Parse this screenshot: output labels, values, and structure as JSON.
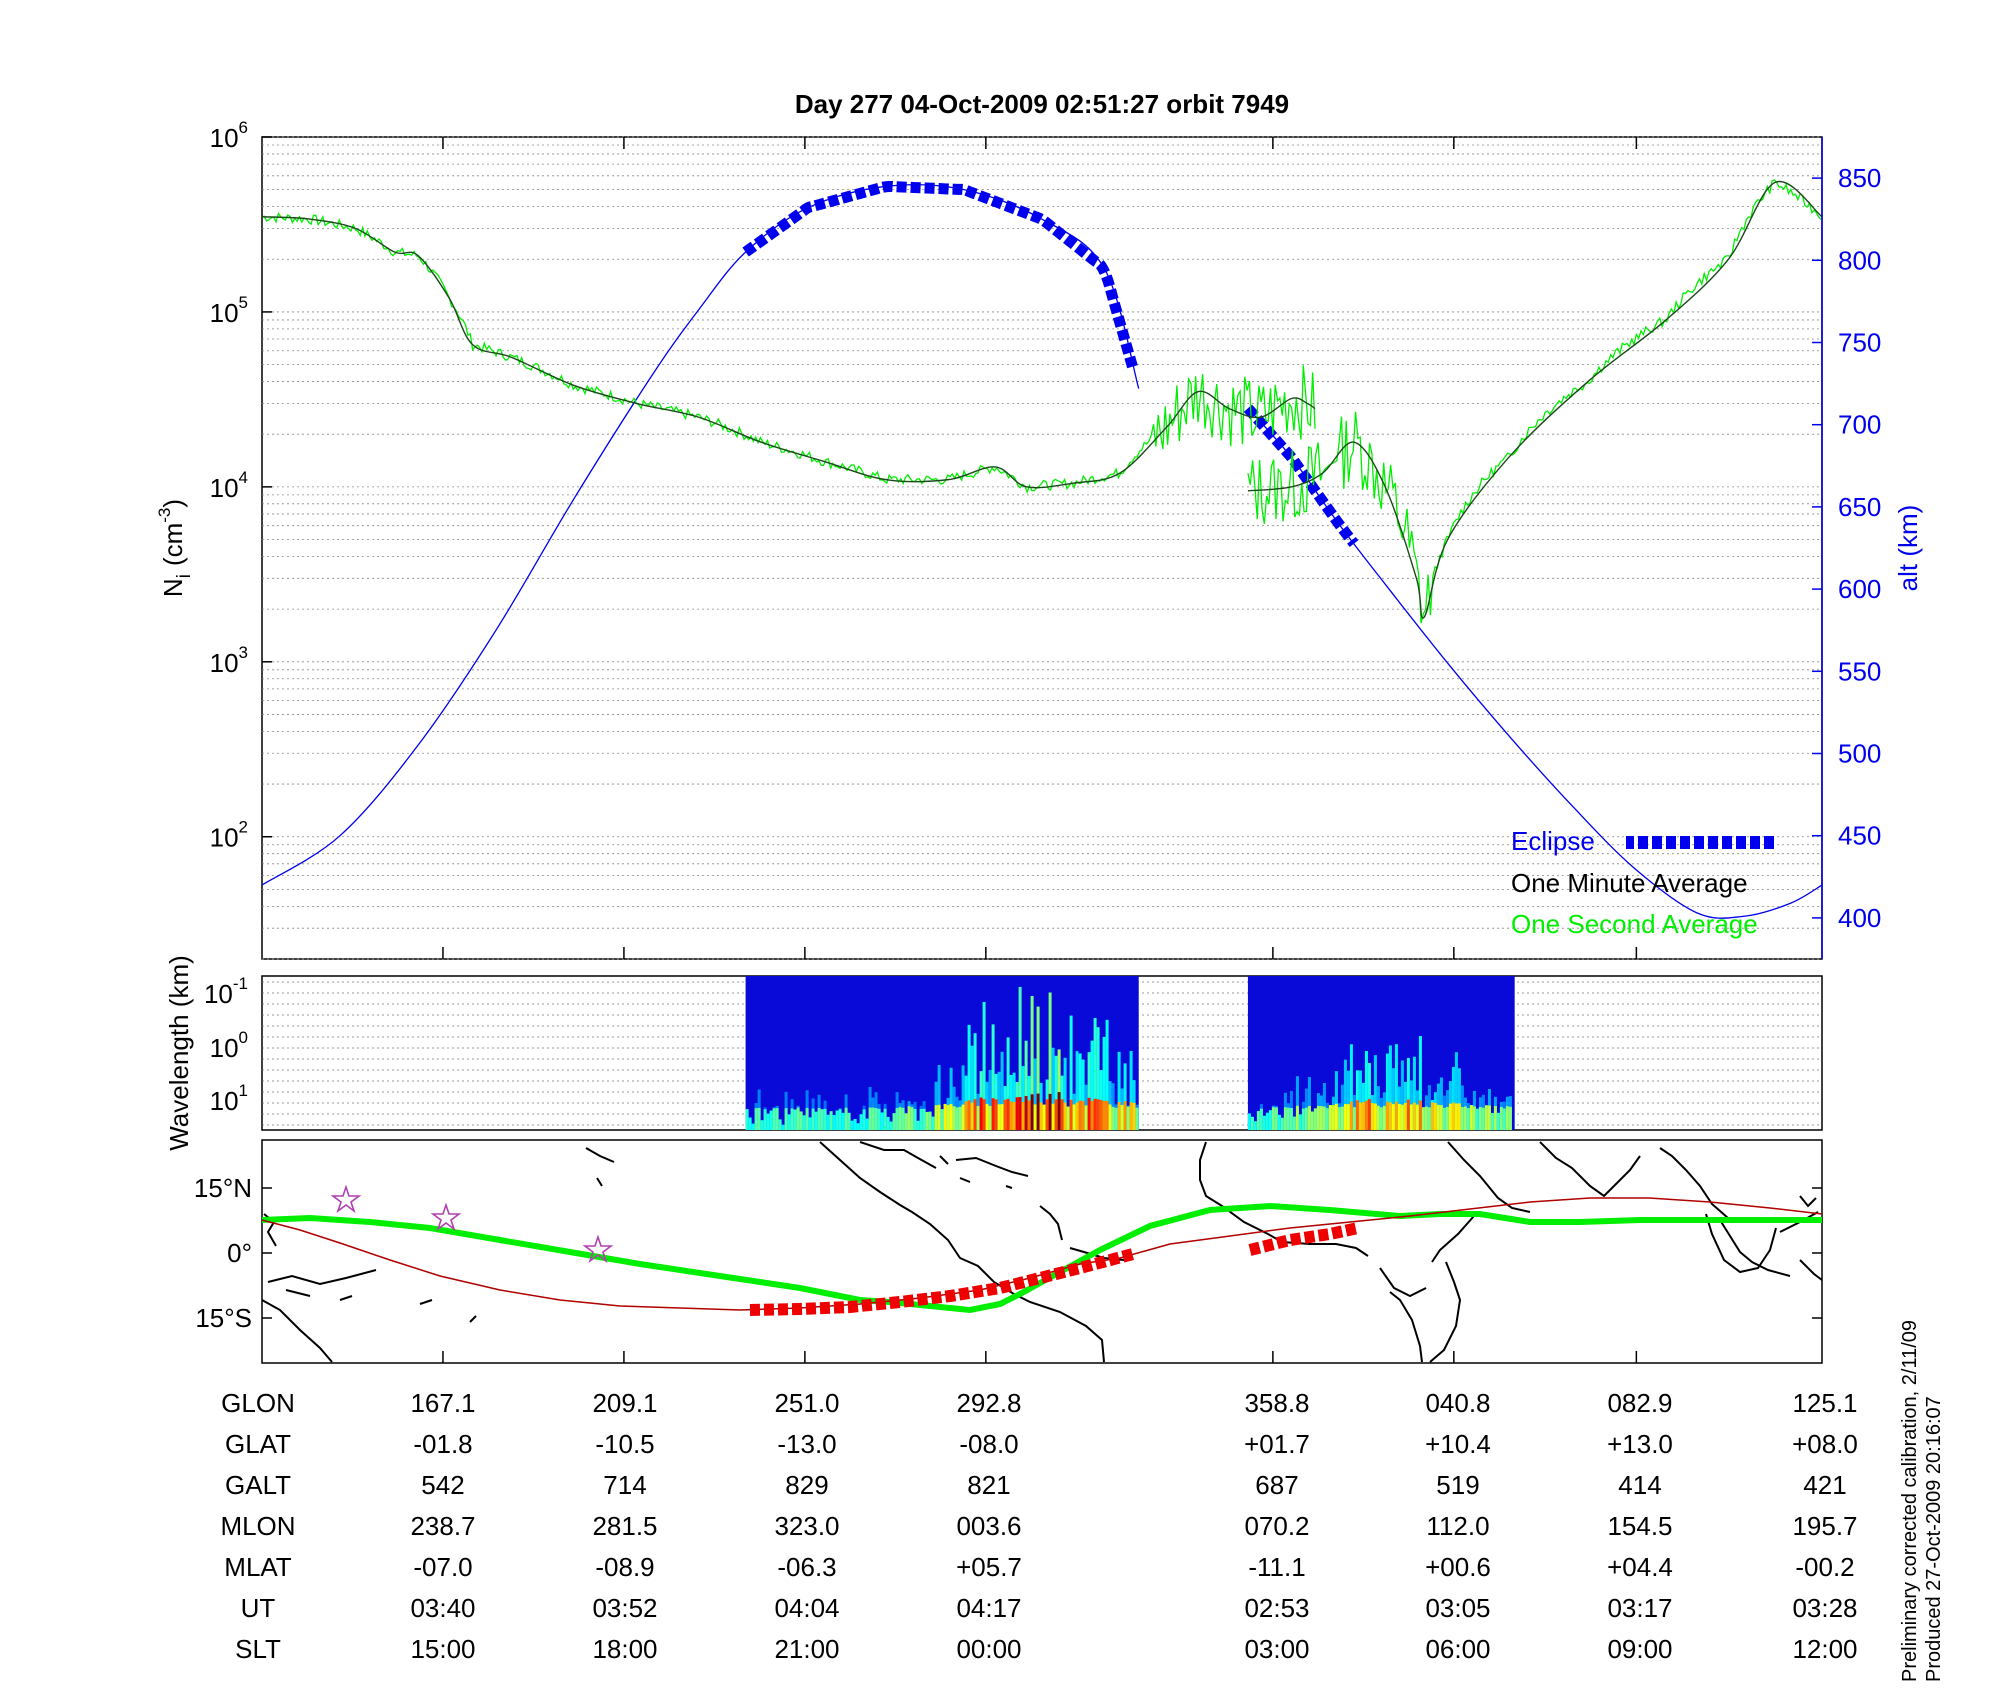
{
  "title": "Day 277  04-Oct-2009 02:51:27   orbit 7949",
  "colors": {
    "blue": "#0000ee",
    "green": "#00ee00",
    "dark_green": "#1a4a1a",
    "red": "#ee0000",
    "track_red": "#b00000",
    "star": "#b040b0"
  },
  "chart_data": [
    {
      "type": "line",
      "name": "density-altitude panel",
      "ylabel_left": "N",
      "ylabel_left_sub": "i",
      "ylabel_left_unit": "(cm",
      "ylabel_left_sup": "-3",
      "ylabel_left_end": ")",
      "ylabel_right": "alt (km)",
      "y_left_scale": "log",
      "y_left_range": [
        20,
        1000000
      ],
      "y_left_ticks": [
        {
          "base": "10",
          "exp": "2",
          "value": 100
        },
        {
          "base": "10",
          "exp": "3",
          "value": 1000
        },
        {
          "base": "10",
          "exp": "4",
          "value": 10000
        },
        {
          "base": "10",
          "exp": "5",
          "value": 100000
        },
        {
          "base": "10",
          "exp": "6",
          "value": 1000000
        }
      ],
      "y_right_range": [
        375,
        875
      ],
      "y_right_ticks": [
        "400",
        "450",
        "500",
        "550",
        "600",
        "650",
        "700",
        "750",
        "800",
        "850"
      ],
      "x_unit": "index 0..1 over orbit segment",
      "legend": {
        "position": "bottom-right",
        "items": [
          {
            "label": "Eclipse",
            "color": "#0000ee"
          },
          {
            "label": "One Minute Average",
            "color": "#000000"
          },
          {
            "label": "One Second Average",
            "color": "#00ee00"
          }
        ]
      },
      "altitude_km": {
        "segment_1": [
          [
            0.0,
            420
          ],
          [
            0.05,
            450
          ],
          [
            0.1,
            505
          ],
          [
            0.15,
            575
          ],
          [
            0.2,
            655
          ],
          [
            0.25,
            730
          ],
          [
            0.28,
            770
          ],
          [
            0.31,
            805
          ],
          [
            0.35,
            832
          ],
          [
            0.4,
            845
          ],
          [
            0.45,
            843
          ],
          [
            0.5,
            825
          ],
          [
            0.54,
            795
          ],
          [
            0.562,
            722
          ]
        ],
        "segment_2": [
          [
            0.632,
            710
          ],
          [
            0.66,
            680
          ],
          [
            0.69,
            640
          ],
          [
            0.72,
            603
          ],
          [
            0.76,
            555
          ],
          [
            0.8,
            510
          ],
          [
            0.84,
            468
          ],
          [
            0.88,
            430
          ],
          [
            0.92,
            403
          ],
          [
            0.95,
            401
          ],
          [
            0.98,
            409
          ],
          [
            1.0,
            420
          ]
        ]
      },
      "eclipse_intervals": [
        [
          0.31,
          0.562
        ],
        [
          0.632,
          0.703
        ]
      ],
      "density_minute_avg": {
        "segment_1": [
          [
            0.0,
            350000
          ],
          [
            0.03,
            340000
          ],
          [
            0.06,
            300000
          ],
          [
            0.085,
            220000
          ],
          [
            0.1,
            210000
          ],
          [
            0.12,
            120000
          ],
          [
            0.135,
            65000
          ],
          [
            0.16,
            55000
          ],
          [
            0.2,
            38000
          ],
          [
            0.24,
            30000
          ],
          [
            0.28,
            25000
          ],
          [
            0.32,
            18000
          ],
          [
            0.36,
            14000
          ],
          [
            0.4,
            11000
          ],
          [
            0.44,
            11000
          ],
          [
            0.47,
            13000
          ],
          [
            0.49,
            10000
          ],
          [
            0.52,
            10500
          ],
          [
            0.55,
            12000
          ],
          [
            0.58,
            22000
          ],
          [
            0.6,
            35000
          ],
          [
            0.62,
            28000
          ],
          [
            0.64,
            25000
          ],
          [
            0.66,
            32000
          ],
          [
            0.67,
            30000
          ],
          [
            0.675,
            28000
          ]
        ],
        "segment_2": [
          [
            0.632,
            9500
          ],
          [
            0.66,
            10000
          ],
          [
            0.68,
            12000
          ],
          [
            0.7,
            18000
          ],
          [
            0.72,
            10000
          ],
          [
            0.74,
            3000
          ],
          [
            0.745,
            1800
          ],
          [
            0.76,
            5000
          ],
          [
            0.8,
            15000
          ],
          [
            0.85,
            40000
          ],
          [
            0.9,
            90000
          ],
          [
            0.94,
            200000
          ],
          [
            0.97,
            550000
          ],
          [
            1.0,
            350000
          ]
        ]
      }
    },
    {
      "type": "heatmap",
      "name": "wavelength spectrogram",
      "ylabel": "Wavelength (km)",
      "y_scale": "log",
      "y_ticks": [
        {
          "base": "10",
          "exp": "-1"
        },
        {
          "base": "10",
          "exp": "0"
        },
        {
          "base": "10",
          "exp": "1"
        }
      ],
      "data_intervals": [
        [
          0.31,
          0.562
        ],
        [
          0.632,
          0.803
        ]
      ],
      "colormap": "jet"
    },
    {
      "type": "map",
      "name": "ground track map",
      "y_ticks": [
        "15°N",
        "0°",
        "15°S"
      ],
      "magnetic_equator_color": "#00ee00",
      "track_color": "#b00000"
    }
  ],
  "table": {
    "row_labels": [
      "GLON",
      "GLAT",
      "GALT",
      "MLON",
      "MLAT",
      "UT",
      "SLT"
    ],
    "columns": [
      [
        "167.1",
        "-01.8",
        "542",
        "238.7",
        "-07.0",
        "03:40",
        "15:00"
      ],
      [
        "209.1",
        "-10.5",
        "714",
        "281.5",
        "-08.9",
        "03:52",
        "18:00"
      ],
      [
        "251.0",
        "-13.0",
        "829",
        "323.0",
        "-06.3",
        "04:04",
        "21:00"
      ],
      [
        "292.8",
        "-08.0",
        "821",
        "003.6",
        "+05.7",
        "04:17",
        "00:00"
      ],
      [
        "358.8",
        "+01.7",
        "687",
        "070.2",
        "-11.1",
        "02:53",
        "03:00"
      ],
      [
        "040.8",
        "+10.4",
        "519",
        "112.0",
        "+00.6",
        "03:05",
        "06:00"
      ],
      [
        "082.9",
        "+13.0",
        "414",
        "154.5",
        "+04.4",
        "03:17",
        "09:00"
      ],
      [
        "125.1",
        "+08.0",
        "421",
        "195.7",
        "-00.2",
        "03:28",
        "12:00"
      ]
    ]
  },
  "footer": {
    "line1": "Preliminary corrected calibration, 2/11/09",
    "line2": "Produced 27-Oct-2009 20:16:07"
  }
}
